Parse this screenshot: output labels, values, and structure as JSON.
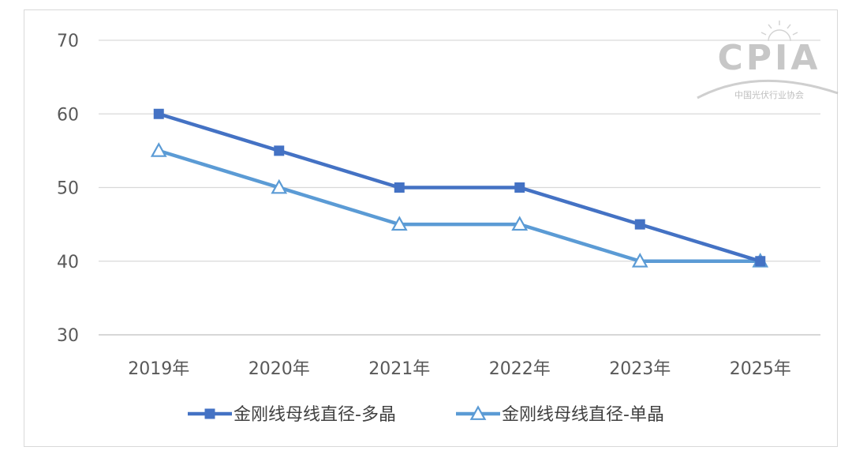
{
  "chart_data": {
    "type": "line",
    "categories": [
      "2019年",
      "2020年",
      "2021年",
      "2022年",
      "2023年",
      "2025年"
    ],
    "series": [
      {
        "name": "金刚线母线直径-多晶",
        "values": [
          60,
          55,
          50,
          50,
          45,
          40
        ],
        "color": "#4472c4",
        "marker": "square"
      },
      {
        "name": "金刚线母线直径-单晶",
        "values": [
          55,
          50,
          45,
          45,
          40,
          40
        ],
        "color": "#5b9bd5",
        "marker": "triangle"
      }
    ],
    "ylim": [
      30,
      70
    ],
    "yticks": [
      30,
      40,
      50,
      60,
      70
    ],
    "grid": true,
    "legend_position": "bottom"
  },
  "logo": {
    "text": "CPIA",
    "subtitle": "中国光伏行业协会"
  }
}
